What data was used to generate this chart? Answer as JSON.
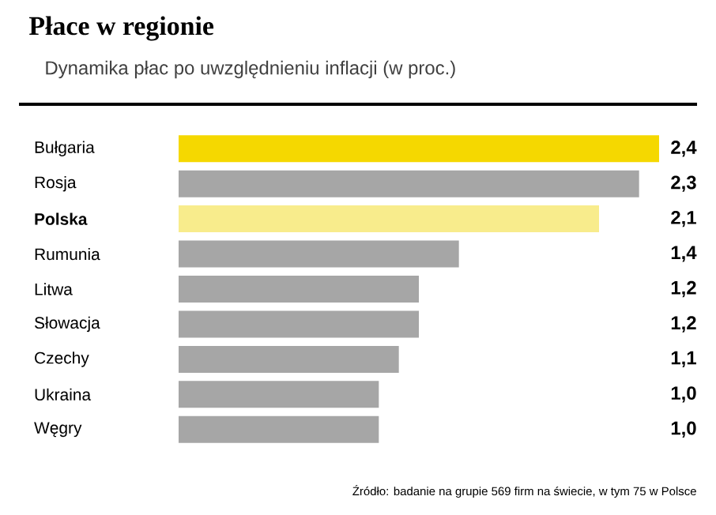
{
  "chart_data": {
    "type": "bar",
    "orientation": "horizontal",
    "title": "Płace w regionie",
    "subtitle": "Dynamika płac po uwzględnieniu inflacji (w proc.)",
    "categories": [
      "Bułgaria",
      "Rosja",
      "**Polska**",
      "Rumunia",
      "Litwa",
      "Słowacja",
      "Czechy",
      "Ukraina",
      "Węgry"
    ],
    "values": [
      2.4,
      2.3,
      2.1,
      1.4,
      1.2,
      1.2,
      1.1,
      1.0,
      1.0
    ],
    "value_labels": [
      "2,4",
      "2,3",
      "2,1",
      "1,4",
      "1,2",
      "1,2",
      "1,1",
      "1,0",
      "1,0"
    ],
    "colors": [
      "#f5d800",
      "#a6a6a6",
      "#f8ec8c",
      "#a6a6a6",
      "#a6a6a6",
      "#a6a6a6",
      "#a6a6a6",
      "#a6a6a6",
      "#a6a6a6"
    ],
    "annotations": [
      "Źródło: badanie na grupie 569 firm na świecie, w tym 75 w Polsce"
    ]
  }
}
